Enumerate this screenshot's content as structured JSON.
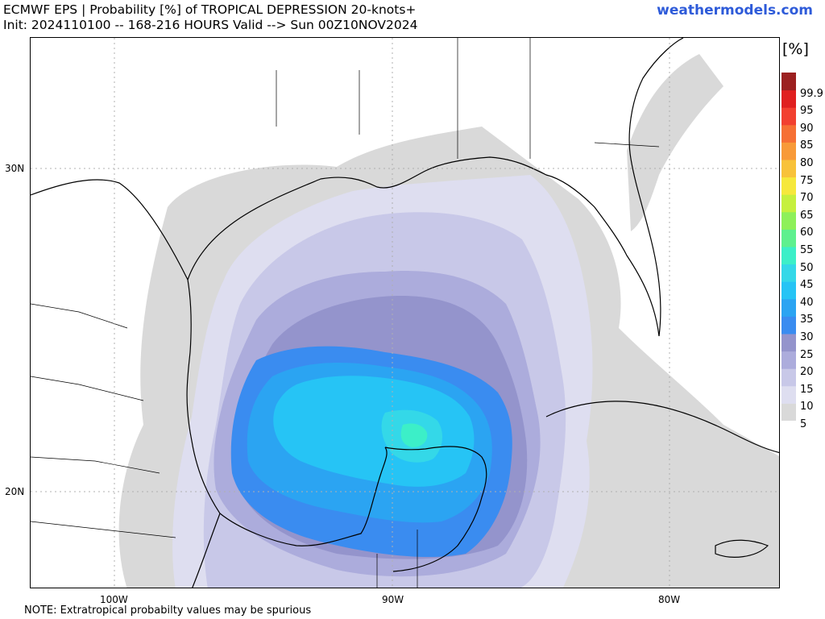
{
  "header": {
    "title_line1": "ECMWF EPS | Probability [%] of TROPICAL DEPRESSION 20-knots+",
    "title_line2": "Init: 2024110100 -- 168-216 HOURS Valid --> Sun 00Z10NOV2024",
    "brand": "weathermodels.com"
  },
  "map": {
    "lat_labels": [
      "30N",
      "20N"
    ],
    "lon_labels": [
      "100W",
      "90W",
      "80W"
    ],
    "colors": {
      "land": "#ffffff",
      "coast": "#000000",
      "grid": "#b0b0b0"
    }
  },
  "legend": {
    "unit": "[%]",
    "levels": [
      "5",
      "10",
      "15",
      "20",
      "25",
      "30",
      "35",
      "40",
      "45",
      "50",
      "55",
      "60",
      "65",
      "70",
      "75",
      "80",
      "85",
      "90",
      "95",
      "99.9"
    ],
    "colors": [
      "#d9d9d9",
      "#dedef0",
      "#c8c8e8",
      "#acacdc",
      "#9494cc",
      "#3a8cf0",
      "#2ba4f2",
      "#26c4f5",
      "#34d8e8",
      "#3cefc8",
      "#5ef08e",
      "#8ef05a",
      "#c6f03e",
      "#f6e83c",
      "#f8c23a",
      "#f89a38",
      "#f67034",
      "#f24030",
      "#e02020",
      "#9c2020"
    ]
  },
  "note": "NOTE: Extratropical probabilty values may be spurious"
}
